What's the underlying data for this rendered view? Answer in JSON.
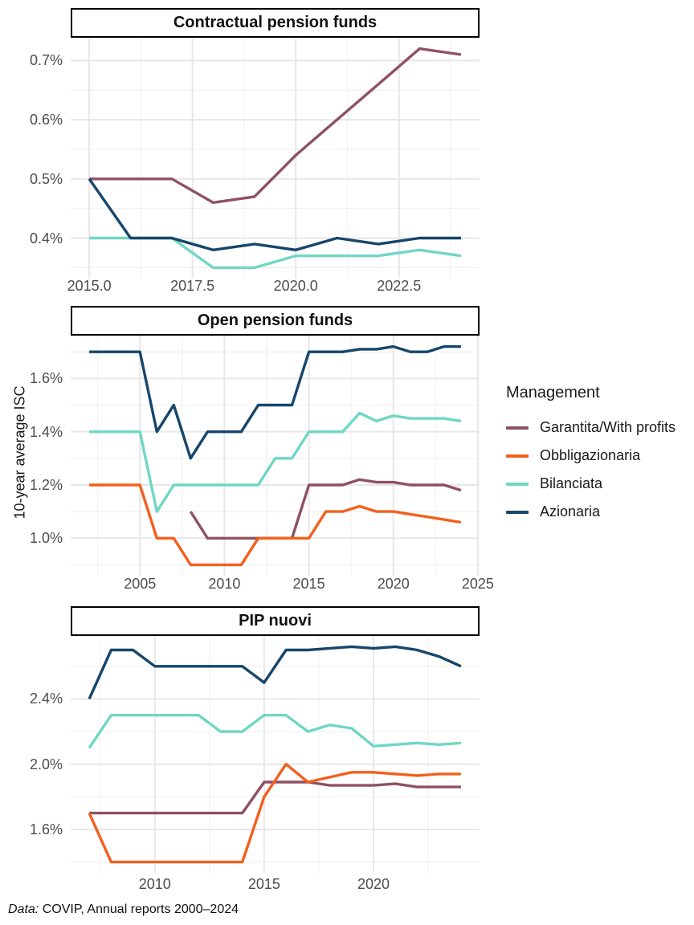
{
  "figure": {
    "y_axis_title": "10-year average ISC",
    "caption": {
      "prefix": "Data:",
      "text": " COVIP, Annual reports 2000–2024"
    },
    "legend": {
      "title": "Management",
      "entries": [
        {
          "label": "Garantita/With profits",
          "color": "#8F5164"
        },
        {
          "label": "Obbligazionaria",
          "color": "#F3601D"
        },
        {
          "label": "Bilanciata",
          "color": "#6FD7C3"
        },
        {
          "label": "Azionaria",
          "color": "#16466B"
        }
      ]
    },
    "grid": {
      "major_color": "#e7e7e7",
      "minor_color": "#f1f1f1",
      "line_width": 3.4
    }
  },
  "chart_data": [
    {
      "type": "line",
      "title": "Contractual pension funds",
      "xlabel": "",
      "ylabel": "10-year average ISC",
      "x_domain": [
        2014.55,
        2024.45
      ],
      "y_domain": [
        0.3315,
        0.7385
      ],
      "x_ticks": [
        {
          "label": "2015.0",
          "value": 2015.0
        },
        {
          "label": "2017.5",
          "value": 2017.5
        },
        {
          "label": "2020.0",
          "value": 2020.0
        },
        {
          "label": "2022.5",
          "value": 2022.5
        }
      ],
      "y_ticks": [
        {
          "label": "0.4%",
          "value": 0.4
        },
        {
          "label": "0.5%",
          "value": 0.5
        },
        {
          "label": "0.6%",
          "value": 0.6
        },
        {
          "label": "0.7%",
          "value": 0.7
        }
      ],
      "x_minor": [
        2016.25,
        2018.75,
        2021.25,
        2023.75
      ],
      "y_minor": [
        0.35,
        0.45,
        0.55,
        0.65
      ],
      "series": [
        {
          "name": "Garantita/With profits",
          "color": "#8F5164",
          "start_year": 2015,
          "values": [
            0.5,
            0.5,
            0.5,
            0.46,
            0.47,
            0.54,
            0.6,
            0.66,
            0.72,
            0.71
          ]
        },
        {
          "name": "Bilanciata",
          "color": "#6FD7C3",
          "start_year": 2015,
          "values": [
            0.4,
            0.4,
            0.4,
            0.35,
            0.35,
            0.37,
            0.37,
            0.37,
            0.38,
            0.37
          ]
        },
        {
          "name": "Azionaria",
          "color": "#16466B",
          "start_year": 2015,
          "values": [
            0.5,
            0.4,
            0.4,
            0.38,
            0.39,
            0.38,
            0.4,
            0.39,
            0.4,
            0.4
          ]
        }
      ]
    },
    {
      "type": "line",
      "title": "Open pension funds",
      "xlabel": "",
      "ylabel": "10-year average ISC",
      "x_domain": [
        2000.9,
        2025.1
      ],
      "y_domain": [
        0.859,
        1.761
      ],
      "x_ticks": [
        {
          "label": "2005",
          "value": 2005
        },
        {
          "label": "2010",
          "value": 2010
        },
        {
          "label": "2015",
          "value": 2015
        },
        {
          "label": "2020",
          "value": 2020
        },
        {
          "label": "2025",
          "value": 2025
        }
      ],
      "y_ticks": [
        {
          "label": "1.0%",
          "value": 1.0
        },
        {
          "label": "1.2%",
          "value": 1.2
        },
        {
          "label": "1.4%",
          "value": 1.4
        },
        {
          "label": "1.6%",
          "value": 1.6
        }
      ],
      "x_minor": [
        2002.5,
        2007.5,
        2012.5,
        2017.5,
        2022.5
      ],
      "y_minor": [
        0.9,
        1.1,
        1.3,
        1.5,
        1.7
      ],
      "series": [
        {
          "name": "Garantita/With profits",
          "color": "#8F5164",
          "start_year": 2008,
          "values": [
            1.1,
            1.0,
            1.0,
            1.0,
            1.0,
            1.0,
            1.0,
            1.2,
            1.2,
            1.2,
            1.22,
            1.21,
            1.21,
            1.2,
            1.2,
            1.2,
            1.18
          ]
        },
        {
          "name": "Obbligazionaria",
          "color": "#F3601D",
          "start_year": 2002,
          "values": [
            1.2,
            1.2,
            1.2,
            1.2,
            1.0,
            1.0,
            0.9,
            0.9,
            0.9,
            0.9,
            1.0,
            1.0,
            1.0,
            1.0,
            1.1,
            1.1,
            1.12,
            1.1,
            1.1,
            1.09,
            1.08,
            1.07,
            1.06
          ]
        },
        {
          "name": "Bilanciata",
          "color": "#6FD7C3",
          "start_year": 2002,
          "values": [
            1.4,
            1.4,
            1.4,
            1.4,
            1.1,
            1.2,
            1.2,
            1.2,
            1.2,
            1.2,
            1.2,
            1.3,
            1.3,
            1.4,
            1.4,
            1.4,
            1.47,
            1.44,
            1.46,
            1.45,
            1.45,
            1.45,
            1.44
          ]
        },
        {
          "name": "Azionaria",
          "color": "#16466B",
          "start_year": 2002,
          "values": [
            1.7,
            1.7,
            1.7,
            1.7,
            1.4,
            1.5,
            1.3,
            1.4,
            1.4,
            1.4,
            1.5,
            1.5,
            1.5,
            1.7,
            1.7,
            1.7,
            1.71,
            1.71,
            1.72,
            1.7,
            1.7,
            1.72,
            1.72
          ]
        }
      ]
    },
    {
      "type": "line",
      "title": "PIP nuovi",
      "xlabel": "",
      "ylabel": "10-year average ISC",
      "x_domain": [
        2006.15,
        2024.85
      ],
      "y_domain": [
        1.334,
        2.786
      ],
      "x_ticks": [
        {
          "label": "2010",
          "value": 2010
        },
        {
          "label": "2015",
          "value": 2015
        },
        {
          "label": "2020",
          "value": 2020
        }
      ],
      "y_ticks": [
        {
          "label": "1.6%",
          "value": 1.6
        },
        {
          "label": "2.0%",
          "value": 2.0
        },
        {
          "label": "2.4%",
          "value": 2.4
        }
      ],
      "x_minor": [
        2007.5,
        2012.5,
        2017.5,
        2022.5
      ],
      "y_minor": [
        1.4,
        1.8,
        2.2,
        2.6
      ],
      "series": [
        {
          "name": "Garantita/With profits",
          "color": "#8F5164",
          "start_year": 2007,
          "values": [
            1.7,
            1.7,
            1.7,
            1.7,
            1.7,
            1.7,
            1.7,
            1.7,
            1.89,
            1.89,
            1.89,
            1.87,
            1.87,
            1.87,
            1.88,
            1.86,
            1.86,
            1.86
          ]
        },
        {
          "name": "Obbligazionaria",
          "color": "#F3601D",
          "start_year": 2007,
          "values": [
            1.7,
            1.4,
            1.4,
            1.4,
            1.4,
            1.4,
            1.4,
            1.4,
            1.8,
            2.0,
            1.89,
            1.92,
            1.95,
            1.95,
            1.94,
            1.93,
            1.94,
            1.94
          ]
        },
        {
          "name": "Bilanciata",
          "color": "#6FD7C3",
          "start_year": 2007,
          "values": [
            2.1,
            2.3,
            2.3,
            2.3,
            2.3,
            2.3,
            2.2,
            2.2,
            2.3,
            2.3,
            2.2,
            2.24,
            2.22,
            2.11,
            2.12,
            2.13,
            2.12,
            2.13
          ]
        },
        {
          "name": "Azionaria",
          "color": "#16466B",
          "start_year": 2007,
          "values": [
            2.4,
            2.7,
            2.7,
            2.6,
            2.6,
            2.6,
            2.6,
            2.6,
            2.5,
            2.7,
            2.7,
            2.71,
            2.72,
            2.71,
            2.72,
            2.7,
            2.66,
            2.6
          ]
        }
      ]
    }
  ]
}
